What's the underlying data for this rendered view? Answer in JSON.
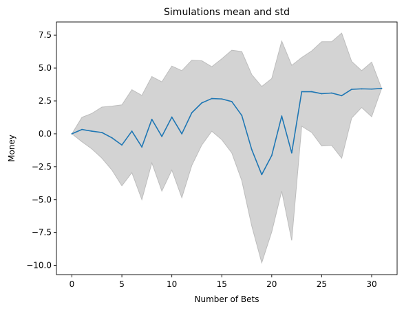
{
  "chart_data": {
    "type": "line",
    "title": "Simulations mean and std",
    "xlabel": "Number of Bets",
    "ylabel": "Money",
    "xlim": [
      -1.55,
      32.55
    ],
    "ylim": [
      -10.7,
      8.5
    ],
    "xticks": [
      0,
      5,
      10,
      15,
      20,
      25,
      30
    ],
    "xtick_labels": [
      "0",
      "5",
      "10",
      "15",
      "20",
      "25",
      "30"
    ],
    "yticks": [
      -10,
      -7.5,
      -5,
      -2.5,
      0,
      2.5,
      5,
      7.5
    ],
    "ytick_labels": [
      "−10.0",
      "−7.5",
      "−5.0",
      "−2.5",
      "0.0",
      "2.5",
      "5.0",
      "7.5"
    ],
    "grid": false,
    "x": [
      0,
      1,
      2,
      3,
      4,
      5,
      6,
      7,
      8,
      9,
      10,
      11,
      12,
      13,
      14,
      15,
      16,
      17,
      18,
      19,
      20,
      21,
      22,
      23,
      24,
      25,
      26,
      27,
      28,
      29,
      30,
      31
    ],
    "series": [
      {
        "values": [
          0.0,
          0.33,
          0.2,
          0.1,
          -0.3,
          -0.85,
          0.2,
          -1.0,
          1.1,
          -0.2,
          1.27,
          0.0,
          1.6,
          2.35,
          2.68,
          2.65,
          2.45,
          1.4,
          -1.2,
          -3.1,
          -1.65,
          1.35,
          -1.45,
          3.2,
          3.2,
          3.05,
          3.1,
          2.9,
          3.38,
          3.42,
          3.4,
          3.45
        ],
        "color": "#1f77b4"
      }
    ],
    "band": {
      "upper": [
        0.0,
        1.25,
        1.55,
        2.03,
        2.1,
        2.2,
        3.35,
        2.92,
        4.35,
        3.95,
        5.15,
        4.8,
        5.6,
        5.55,
        5.1,
        5.7,
        6.35,
        6.25,
        4.5,
        3.6,
        4.2,
        7.05,
        5.2,
        5.8,
        6.3,
        7.0,
        7.0,
        7.65,
        5.5,
        4.8,
        5.45,
        3.45
      ],
      "lower": [
        0.0,
        -0.6,
        -1.15,
        -1.85,
        -2.75,
        -3.95,
        -2.95,
        -5.0,
        -2.2,
        -4.35,
        -2.75,
        -4.85,
        -2.4,
        -0.85,
        0.2,
        -0.45,
        -1.45,
        -3.55,
        -7.0,
        -9.8,
        -7.45,
        -4.35,
        -8.1,
        0.58,
        0.1,
        -0.92,
        -0.88,
        -1.85,
        1.2,
        2.0,
        1.3,
        3.45
      ],
      "color": "#d3d3d3",
      "edge_color": "#bdbdbd"
    }
  }
}
